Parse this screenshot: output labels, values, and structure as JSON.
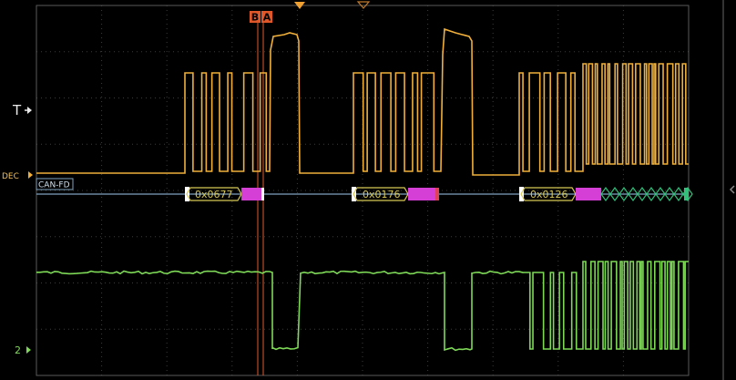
{
  "colors": {
    "background": "#000000",
    "grid": "#3c3c3c",
    "graticule_frame": "#5a5a5a",
    "trace_decode": "#f0b03a",
    "trace_ch2": "#7ed957",
    "cursor": "#e0582a",
    "bus_line": "#7fa3c0",
    "bus_frame": "#d8c955",
    "bus_dlc": "#d63fd6",
    "bus_crc": "#32c07a"
  },
  "markers": {
    "cursor_b": "B",
    "cursor_a": "A",
    "trigger_level": "T",
    "decode_ref": "DEC",
    "ch2_ref": "2"
  },
  "bus": {
    "label": "CAN-FD",
    "frames": [
      {
        "id": "0x0677"
      },
      {
        "id": "0x0176"
      },
      {
        "id": "0x0126"
      }
    ]
  },
  "icons": {
    "trigger_position": "trigger-position-icon",
    "expansion_point": "expansion-point-icon",
    "collapse_panel": "chevron-left-icon"
  }
}
